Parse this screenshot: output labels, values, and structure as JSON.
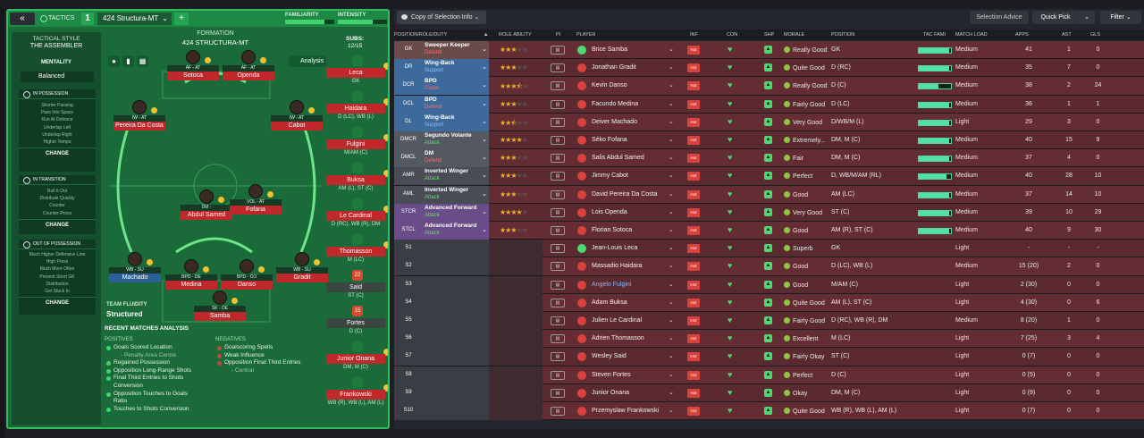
{
  "window": {
    "title": "Tactics"
  },
  "left": {
    "tab_label": "TACTICS",
    "tactic_number": "1",
    "tactic_name": "424 Structura-MT",
    "add_label": "+",
    "familiarity_label": "FAMILIARITY",
    "intensity_label": "INTENSITY",
    "tactical_style_label": "TACTICAL STYLE",
    "tactical_style": "THE ASSEMBLER",
    "mentality_label": "MENTALITY",
    "mentality": "Balanced",
    "in_possession": {
      "label": "IN POSSESSION",
      "items": [
        "Shorter Passing",
        "Pass Into Space",
        "Run At Defence",
        "Underlap Left",
        "Underlap Right",
        "Higher Tempo"
      ],
      "change": "CHANGE"
    },
    "in_transition": {
      "label": "IN TRANSITION",
      "items": [
        "Roll It Out",
        "Distribute Quickly",
        "Counter",
        "Counter-Press"
      ],
      "change": "CHANGE"
    },
    "out_of_possession": {
      "label": "OUT OF POSSESSION",
      "items": [
        "Much Higher Defensive Line",
        "High Press",
        "Much More Often",
        "Prevent Short GK",
        "Distribution",
        "Get Stuck In"
      ],
      "change": "CHANGE"
    },
    "formation_label": "FORMATION",
    "formation": "424 STRUCTURA-MT",
    "subs_label": "SUBS:",
    "subs_count": "12/15",
    "analysis_btn": "Analysis",
    "team_fluidity_label": "TEAM FLUIDITY",
    "team_fluidity": "Structured",
    "players": [
      {
        "role": "AF - AT",
        "name": "Sotoca"
      },
      {
        "role": "AF - AT",
        "name": "Openda"
      },
      {
        "role": "IW - AT",
        "name": "Pereira Da Costa"
      },
      {
        "role": "IW - AT",
        "name": "Cabot"
      },
      {
        "role": "DM -",
        "name": "Abdul Samed"
      },
      {
        "role": "VOL - AT",
        "name": "Fofana"
      },
      {
        "role": "WB - SU",
        "name": "Machado"
      },
      {
        "role": "BPD - DE",
        "name": "Medina"
      },
      {
        "role": "BPD - CO",
        "name": "Danso"
      },
      {
        "role": "WB - SU",
        "name": "Gradit"
      },
      {
        "role": "SK - DE",
        "name": "Samba"
      }
    ],
    "subs": [
      {
        "name": "Leca",
        "pos": "GK"
      },
      {
        "name": "Haidara",
        "pos": "D (LC), WB (L)"
      },
      {
        "name": "Fulgini",
        "pos": "M/AM (C)"
      },
      {
        "name": "Buksa",
        "pos": "AM (L), ST (C)"
      },
      {
        "name": "Le Cardinal",
        "pos": "D (RC), WB (R), DM"
      },
      {
        "name": "Thomasson",
        "pos": "M (LC)"
      },
      {
        "name": "Said",
        "pos": "ST (C)",
        "badge": "22"
      },
      {
        "name": "Fortes",
        "pos": "D (C)",
        "badge": "15"
      },
      {
        "name": "Junior Onana",
        "pos": "DM, M (C)"
      },
      {
        "name": "Frankowski",
        "pos": "WB (R), WB (L), AM (L)"
      }
    ],
    "recent_label": "RECENT MATCHES ANALYSIS",
    "positives_label": "POSITIVES",
    "negatives_label": "NEGATIVES",
    "positives": [
      "Goals Scored Location",
      "- Penalty Area Centre",
      "Regained Possession",
      "Opposition Long-Range Shots",
      "Final Third Entries to Shots",
      "Conversion",
      "Opposition Touches to Goals",
      "Ratio",
      "Touches to Shots Conversion"
    ],
    "negatives": [
      "Goalscoring Spells",
      "Weak Influence",
      "Opposition Final Third Entries",
      "- Central"
    ]
  },
  "right": {
    "copy_btn": "Copy of Selection Info",
    "selection_advice": "Selection Advice",
    "quick_pick": "Quick Pick",
    "filter": "Filter",
    "headers": {
      "pos": "POSITION/ROLE/DUTY",
      "ability": "ROLE ABILITY",
      "pi": "PI",
      "player": "PLAYER",
      "inf": "INF",
      "con": "CON",
      "shp": "SHP",
      "morale": "MORALE",
      "position": "POSITION",
      "tacfam": "TAC FAMI",
      "load": "MATCH LOAD",
      "apps": "APPS",
      "ast": "AST",
      "gls": "GLS"
    },
    "rows": [
      {
        "pos": "GK",
        "role": "Sweeper Keeper",
        "duty": "Defend",
        "stars": 3,
        "player": "Brice Samba",
        "morale": "Really Good",
        "position": "GK",
        "tacfam": 0.95,
        "load": "Medium",
        "apps": "41",
        "ast": "1",
        "gls": "0"
      },
      {
        "pos": "DR",
        "role": "Wing-Back",
        "duty": "Support",
        "stars": 3,
        "player": "Jonathan Gradit",
        "morale": "Quite Good",
        "position": "D (RC)",
        "tacfam": 0.95,
        "load": "Medium",
        "apps": "35",
        "ast": "7",
        "gls": "0"
      },
      {
        "pos": "DCR",
        "role": "BPD",
        "duty": "Cover",
        "stars": 3.5,
        "player": "Kevin Danso",
        "morale": "Really Good",
        "position": "D (C)",
        "tacfam": 0.6,
        "load": "Medium",
        "apps": "38",
        "ast": "2",
        "gls": "24"
      },
      {
        "pos": "DCL",
        "role": "BPD",
        "duty": "Defend",
        "stars": 3,
        "player": "Facundo Medina",
        "morale": "Fairly Good",
        "position": "D (LC)",
        "tacfam": 0.95,
        "load": "Medium",
        "apps": "36",
        "ast": "1",
        "gls": "1"
      },
      {
        "pos": "DL",
        "role": "Wing-Back",
        "duty": "Support",
        "stars": 2.5,
        "player": "Deiver Machado",
        "morale": "Very Good",
        "position": "D/WB/M (L)",
        "tacfam": 0.95,
        "load": "Light",
        "apps": "29",
        "ast": "3",
        "gls": "0"
      },
      {
        "pos": "DMCR",
        "role": "Segundo Volante",
        "duty": "Attack",
        "stars": 4,
        "player": "Séko Fofana",
        "morale": "Extremely...",
        "position": "DM, M (C)",
        "tacfam": 0.95,
        "load": "Medium",
        "apps": "40",
        "ast": "15",
        "gls": "9"
      },
      {
        "pos": "DMCL",
        "role": "DM",
        "duty": "Defend",
        "stars": 3,
        "player": "Salis Abdul Samed",
        "morale": "Fair",
        "position": "DM, M (C)",
        "tacfam": 0.95,
        "load": "Medium",
        "apps": "37",
        "ast": "4",
        "gls": "0"
      },
      {
        "pos": "AMR",
        "role": "Inverted Winger",
        "duty": "Attack",
        "stars": 3,
        "player": "Jimmy Cabot",
        "morale": "Perfect",
        "position": "D, WB/M/AM (RL)",
        "tacfam": 0.85,
        "load": "Medium",
        "apps": "40",
        "ast": "28",
        "gls": "10"
      },
      {
        "pos": "AML",
        "role": "Inverted Winger",
        "duty": "Attack",
        "stars": 3,
        "player": "David Pereira Da Costa",
        "morale": "Good",
        "position": "AM (LC)",
        "tacfam": 0.95,
        "load": "Medium",
        "apps": "37",
        "ast": "14",
        "gls": "10"
      },
      {
        "pos": "STCR",
        "role": "Advanced Forward",
        "duty": "Attack",
        "stars": 4,
        "player": "Lois Openda",
        "morale": "Very Good",
        "position": "ST (C)",
        "tacfam": 0.95,
        "load": "Medium",
        "apps": "39",
        "ast": "10",
        "gls": "29"
      },
      {
        "pos": "STCL",
        "role": "Advanced Forward",
        "duty": "Attack",
        "stars": 3,
        "player": "Florian Sotoca",
        "morale": "Good",
        "position": "AM (R), ST (C)",
        "tacfam": 0.95,
        "load": "Medium",
        "apps": "40",
        "ast": "9",
        "gls": "30"
      },
      {
        "pos": "S1",
        "player": "Jean-Louis Leca",
        "morale": "Superb",
        "position": "GK",
        "load": "Light",
        "apps": "-",
        "ast": "-",
        "gls": "-"
      },
      {
        "pos": "S2",
        "player": "Massadio Haidara",
        "morale": "Good",
        "position": "D (LC), WB (L)",
        "load": "Medium",
        "apps": "15 (20)",
        "ast": "2",
        "gls": "0"
      },
      {
        "pos": "S3",
        "player": "Angelo Fulgini",
        "morale": "Good",
        "position": "M/AM (C)",
        "load": "Light",
        "apps": "2 (30)",
        "ast": "0",
        "gls": "0"
      },
      {
        "pos": "S4",
        "player": "Adam Buksa",
        "morale": "Quite Good",
        "position": "AM (L), ST (C)",
        "load": "Light",
        "apps": "4 (30)",
        "ast": "0",
        "gls": "6"
      },
      {
        "pos": "S5",
        "player": "Julien Le Cardinal",
        "morale": "Fairly Good",
        "position": "D (RC), WB (R), DM",
        "load": "Medium",
        "apps": "8 (20)",
        "ast": "1",
        "gls": "0"
      },
      {
        "pos": "S6",
        "player": "Adrien Thomasson",
        "morale": "Excellent",
        "position": "M (LC)",
        "load": "Light",
        "apps": "7 (25)",
        "ast": "3",
        "gls": "4"
      },
      {
        "pos": "S7",
        "player": "Wesley Said",
        "morale": "Fairly Okay",
        "position": "ST (C)",
        "load": "Light",
        "apps": "0 (7)",
        "ast": "0",
        "gls": "0"
      },
      {
        "pos": "S8",
        "player": "Steven Fortes",
        "morale": "Perfect",
        "position": "D (C)",
        "load": "Light",
        "apps": "0 (5)",
        "ast": "0",
        "gls": "0"
      },
      {
        "pos": "S9",
        "player": "Junior Onana",
        "morale": "Okay",
        "position": "DM, M (C)",
        "load": "Light",
        "apps": "0 (9)",
        "ast": "0",
        "gls": "0"
      },
      {
        "pos": "S10",
        "player": "Przemyslaw Frankowski",
        "morale": "Quite Good",
        "position": "WB (R), WB (L), AM (L)",
        "load": "Light",
        "apps": "0 (7)",
        "ast": "0",
        "gls": "0"
      }
    ],
    "inf_label": "Hot"
  },
  "colors": {
    "accent": "#2fbd5f",
    "hot": "#d9423c"
  }
}
